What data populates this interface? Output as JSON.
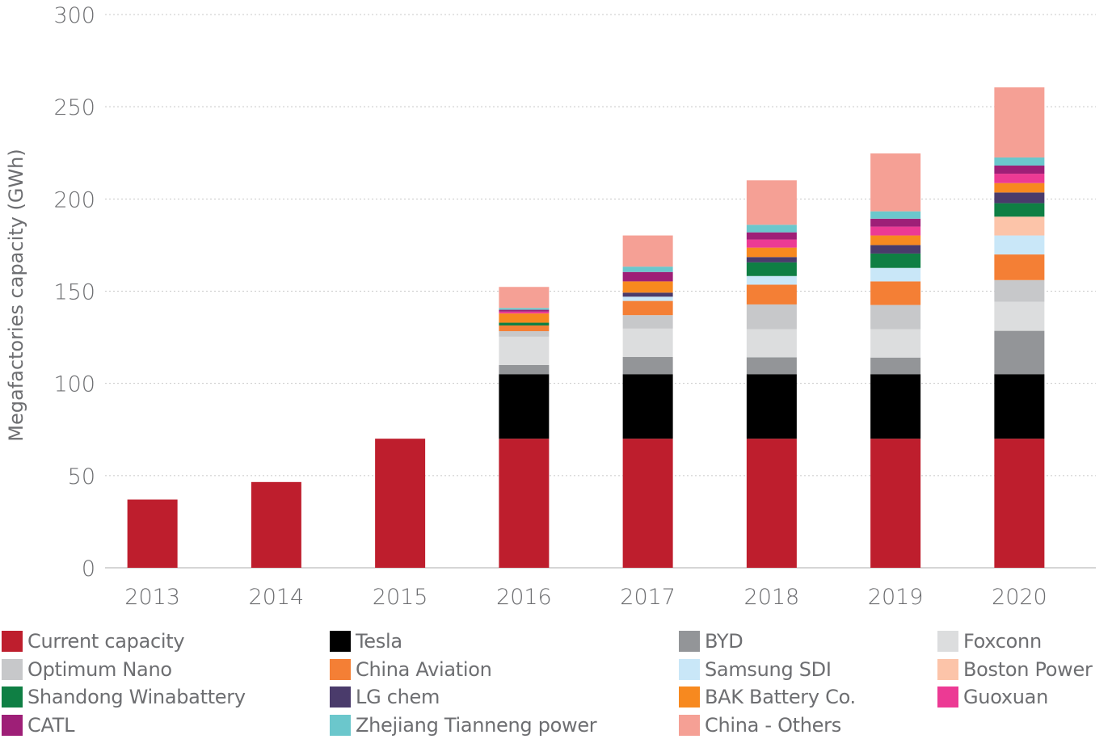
{
  "chart_data": {
    "type": "bar",
    "stacked": true,
    "title": "",
    "xlabel": "",
    "ylabel": "Megafactories capacity (GWh)",
    "ylim": [
      0,
      300
    ],
    "yticks": [
      "0",
      "50",
      "100",
      "150",
      "200",
      "250",
      "300"
    ],
    "grid": true,
    "legend_position": "bottom",
    "categories": [
      "2013",
      "2014",
      "2015",
      "2016",
      "2017",
      "2018",
      "2019",
      "2020"
    ],
    "series": [
      {
        "name": "Current capacity",
        "color": "#be1e2d",
        "values": [
          37,
          46.5,
          70,
          70,
          70,
          70,
          70,
          70
        ]
      },
      {
        "name": "Tesla",
        "color": "#000000",
        "values": [
          0,
          0,
          0,
          35,
          35,
          35,
          35,
          35
        ]
      },
      {
        "name": "BYD",
        "color": "#939598",
        "values": [
          0,
          0,
          0,
          5,
          9.3,
          9.1,
          9,
          23.5
        ]
      },
      {
        "name": "Foxconn",
        "color": "#dcddde",
        "values": [
          0,
          0,
          0,
          15.3,
          15.4,
          15.3,
          15.4,
          15.8
        ]
      },
      {
        "name": "Optimum Nano",
        "color": "#c7c8ca",
        "values": [
          0,
          0,
          0,
          3,
          7.3,
          13.4,
          13.1,
          11.7
        ]
      },
      {
        "name": "China Aviation",
        "color": "#f47f35",
        "values": [
          0,
          0,
          0,
          3.1,
          7.7,
          10.7,
          12.8,
          13.9
        ]
      },
      {
        "name": "Samsung SDI",
        "color": "#c9e7f8",
        "values": [
          0,
          0,
          0,
          0,
          2.3,
          4.7,
          7.3,
          10.3
        ]
      },
      {
        "name": "Boston Power",
        "color": "#fcc4a9",
        "values": [
          0,
          0,
          0,
          0,
          0,
          0,
          0,
          10.2
        ]
      },
      {
        "name": "Shandong Winabattery",
        "color": "#0f7f44",
        "values": [
          0,
          0,
          0,
          1.5,
          0,
          7.4,
          7.8,
          7.3
        ]
      },
      {
        "name": "LG chem",
        "color": "#4a3b6b",
        "values": [
          0,
          0,
          0,
          0,
          2.2,
          2.9,
          4.6,
          5.8
        ]
      },
      {
        "name": "BAK Battery Co.",
        "color": "#f7891f",
        "values": [
          0,
          0,
          0,
          5,
          6.1,
          5.1,
          5.2,
          5.1
        ]
      },
      {
        "name": "Guoxuan",
        "color": "#ec3a94",
        "values": [
          0,
          0,
          0,
          1,
          0,
          4.4,
          4.8,
          5.1
        ]
      },
      {
        "name": "CATL",
        "color": "#9e1f77",
        "values": [
          0,
          0,
          0,
          1,
          5.1,
          3.9,
          4.3,
          4.4
        ]
      },
      {
        "name": "Zhejiang Tianneng power",
        "color": "#6bc7cc",
        "values": [
          0,
          0,
          0,
          1,
          2.9,
          4.1,
          4,
          4.4
        ]
      },
      {
        "name": "China - Others",
        "color": "#f5a095",
        "values": [
          0,
          0,
          0,
          11.4,
          16.9,
          24.1,
          31.4,
          38
        ]
      }
    ]
  },
  "legend": {
    "columns": [
      [
        "Current capacity",
        "Optimum Nano",
        "Shandong Winabattery",
        "CATL"
      ],
      [
        "Tesla",
        "China Aviation",
        "LG chem",
        "Zhejiang Tianneng power"
      ],
      [
        "BYD",
        "Samsung SDI",
        "BAK Battery Co.",
        "China - Others"
      ],
      [
        "Foxconn",
        "Boston Power",
        "Guoxuan"
      ]
    ]
  },
  "colors": {
    "axis_text": "#6d6e71",
    "gridline": "#c8c8c8"
  }
}
